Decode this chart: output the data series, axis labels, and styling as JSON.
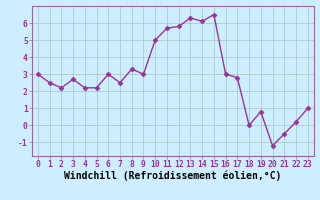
{
  "xlabel": "Windchill (Refroidissement éolien,°C)",
  "x_values": [
    0,
    1,
    2,
    3,
    4,
    5,
    6,
    7,
    8,
    9,
    10,
    11,
    12,
    13,
    14,
    15,
    16,
    17,
    18,
    19,
    20,
    21,
    22,
    23
  ],
  "y_values": [
    3.0,
    2.5,
    2.2,
    2.7,
    2.2,
    2.2,
    3.0,
    2.5,
    3.3,
    3.0,
    5.0,
    5.7,
    5.8,
    6.3,
    6.1,
    6.5,
    3.0,
    2.8,
    0.0,
    0.8,
    -1.2,
    -0.5,
    0.2,
    1.0
  ],
  "line_color": "#993399",
  "marker": "D",
  "marker_size": 2.5,
  "bg_color": "#cceeff",
  "grid_color": "#aacccc",
  "ylim": [
    -1.8,
    7.0
  ],
  "xlim": [
    -0.5,
    23.5
  ],
  "yticks": [
    -1,
    0,
    1,
    2,
    3,
    4,
    5,
    6
  ],
  "xticks": [
    0,
    1,
    2,
    3,
    4,
    5,
    6,
    7,
    8,
    9,
    10,
    11,
    12,
    13,
    14,
    15,
    16,
    17,
    18,
    19,
    20,
    21,
    22,
    23
  ],
  "tick_label_fontsize": 5.8,
  "xlabel_fontsize": 7.0,
  "line_width": 1.0
}
